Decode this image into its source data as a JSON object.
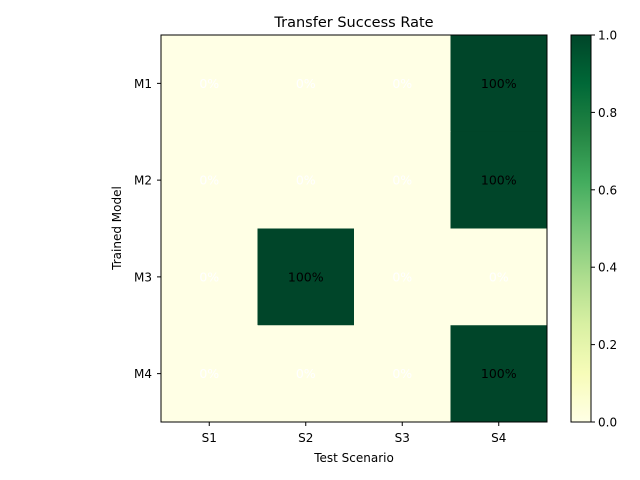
{
  "chart_data": {
    "type": "heatmap",
    "title": "Transfer Success Rate",
    "xlabel": "Test Scenario",
    "ylabel": "Trained Model",
    "x_categories": [
      "S1",
      "S2",
      "S3",
      "S4"
    ],
    "y_categories": [
      "M1",
      "M2",
      "M3",
      "M4"
    ],
    "values": [
      [
        0,
        0,
        0,
        1
      ],
      [
        0,
        0,
        0,
        1
      ],
      [
        0,
        1,
        0,
        0
      ],
      [
        0,
        0,
        0,
        1
      ]
    ],
    "cell_labels": [
      [
        "0%",
        "0%",
        "0%",
        "100%"
      ],
      [
        "0%",
        "0%",
        "0%",
        "100%"
      ],
      [
        "0%",
        "100%",
        "0%",
        "0%"
      ],
      [
        "0%",
        "0%",
        "0%",
        "100%"
      ]
    ],
    "colormap": "YlGn",
    "colorbar": {
      "range": [
        0.0,
        1.0
      ],
      "ticks": [
        "0.0",
        "0.2",
        "0.4",
        "0.6",
        "0.8",
        "1.0"
      ]
    },
    "colors": {
      "low": "#ffffe5",
      "high": "#004529",
      "label_on_low": "#ffffff",
      "label_on_high": "#000000"
    }
  }
}
